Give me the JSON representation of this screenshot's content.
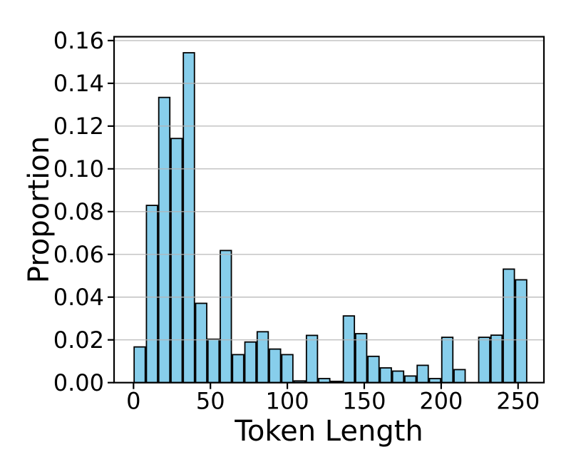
{
  "chart_data": {
    "type": "bar",
    "subtype": "histogram",
    "title": "",
    "xlabel": "Token Length",
    "ylabel": "Proportion",
    "bin_width": 8,
    "bin_lefts": [
      0,
      8,
      16,
      24,
      32,
      40,
      48,
      56,
      64,
      72,
      80,
      88,
      96,
      104,
      112,
      120,
      128,
      136,
      144,
      152,
      160,
      168,
      176,
      184,
      192,
      200,
      208,
      216,
      224,
      232,
      240,
      248
    ],
    "values": [
      0.0167,
      0.0829,
      0.1334,
      0.1142,
      0.1543,
      0.0371,
      0.0203,
      0.0618,
      0.0131,
      0.019,
      0.0238,
      0.0157,
      0.0131,
      0.0008,
      0.0221,
      0.0019,
      0.0006,
      0.0312,
      0.0229,
      0.0123,
      0.0069,
      0.0054,
      0.0031,
      0.0081,
      0.0019,
      0.0212,
      0.0061,
      0.0,
      0.0212,
      0.0222,
      0.0531,
      0.0481
    ],
    "x_tick_values": [
      0,
      50,
      100,
      150,
      200,
      250
    ],
    "x_tick_labels": [
      "0",
      "50",
      "100",
      "150",
      "200",
      "250"
    ],
    "y_tick_values": [
      0,
      0.02,
      0.04,
      0.06,
      0.08,
      0.1,
      0.12,
      0.14,
      0.16
    ],
    "y_tick_labels": [
      "0.00",
      "0.02",
      "0.04",
      "0.06",
      "0.08",
      "0.10",
      "0.12",
      "0.14",
      "0.16"
    ],
    "xlim": [
      -12.65,
      266.8
    ],
    "ylim": [
      0,
      0.1618
    ],
    "grid": "horizontal, drawn on top of bars",
    "legend": "none",
    "rwidth": 0.9,
    "colors": {
      "bar_fill": "#87CEEB",
      "bar_edge": "#000000",
      "grid": "#b4b4b4",
      "axis": "#000000",
      "background": "#ffffff"
    }
  }
}
